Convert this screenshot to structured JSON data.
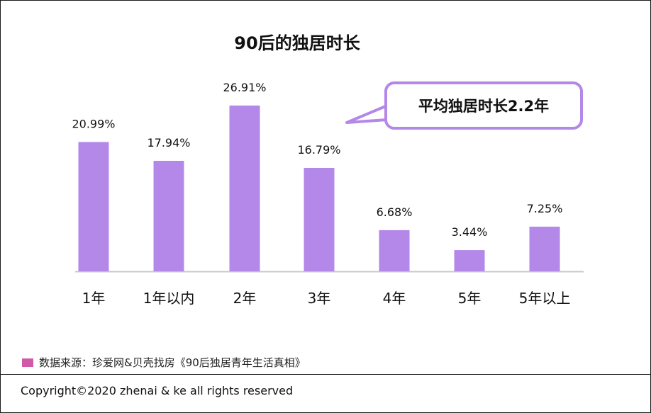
{
  "chart_data": {
    "type": "bar",
    "title": "90后的独居时长",
    "categories": [
      "1年",
      "1年以内",
      "2年",
      "3年",
      "4年",
      "5年",
      "5年以上"
    ],
    "values": [
      20.99,
      17.94,
      26.91,
      16.79,
      6.68,
      3.44,
      7.25
    ],
    "value_labels": [
      "20.99%",
      "17.94%",
      "26.91%",
      "16.79%",
      "6.68%",
      "3.44%",
      "7.25%"
    ],
    "ylim": [
      0,
      30
    ],
    "grid": false,
    "bar_color": "#b388e8",
    "annotation": "平均独居时长2.2年"
  },
  "source": {
    "text": "数据来源：珍爱网&贝壳找房《90后独居青年生活真相》",
    "swatch_color": "#d15aa8"
  },
  "footer": {
    "copyright": "Copyright©2020 zhenai & ke all rights reserved"
  }
}
